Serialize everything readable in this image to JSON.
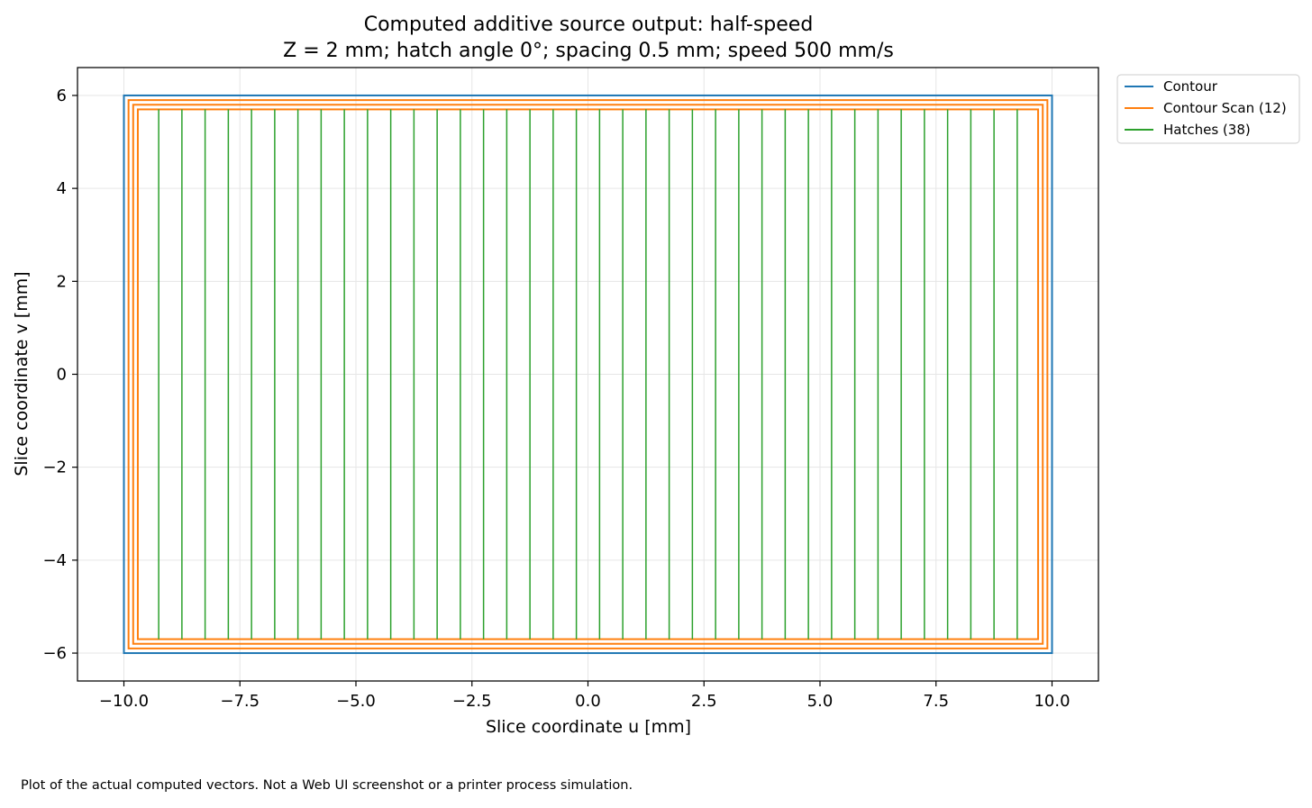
{
  "footnote": "Plot of the actual computed vectors. Not a Web UI screenshot or a printer process simulation.",
  "chart_data": {
    "type": "line",
    "title": "Computed additive source output: half-speed",
    "subtitle": "Z = 2 mm; hatch angle 0°; spacing 0.5 mm; speed 500 mm/s",
    "xlabel": "Slice coordinate u [mm]",
    "ylabel": "Slice coordinate v [mm]",
    "xlim": [
      -11,
      11
    ],
    "ylim": [
      -6.6,
      6.6
    ],
    "xticks": [
      -10.0,
      -7.5,
      -5.0,
      -2.5,
      0.0,
      2.5,
      5.0,
      7.5,
      10.0
    ],
    "xtick_labels": [
      "−10.0",
      "−7.5",
      "−5.0",
      "−2.5",
      "0.0",
      "2.5",
      "5.0",
      "7.5",
      "10.0"
    ],
    "yticks": [
      -6,
      -4,
      -2,
      0,
      2,
      4,
      6
    ],
    "ytick_labels": [
      "−6",
      "−4",
      "−2",
      "0",
      "2",
      "4",
      "6"
    ],
    "grid": true,
    "legend_position": "outside top-right",
    "series": [
      {
        "name": "Contour",
        "color": "#1f77b4",
        "rectangles": [
          {
            "u": [
              -10.0,
              10.0
            ],
            "v": [
              -6.0,
              6.0
            ]
          }
        ]
      },
      {
        "name": "Contour Scan (12)",
        "color": "#ff7f0e",
        "rectangles": [
          {
            "u": [
              -9.9,
              9.9
            ],
            "v": [
              -5.9,
              5.9
            ]
          },
          {
            "u": [
              -9.8,
              9.8
            ],
            "v": [
              -5.8,
              5.8
            ]
          },
          {
            "u": [
              -9.7,
              9.7
            ],
            "v": [
              -5.7,
              5.7
            ]
          }
        ]
      },
      {
        "name": "Hatches (38)",
        "color": "#2ca02c",
        "segments": {
          "u": [
            -9.25,
            -8.75,
            -8.25,
            -7.75,
            -7.25,
            -6.75,
            -6.25,
            -5.75,
            -5.25,
            -4.75,
            -4.25,
            -3.75,
            -3.25,
            -2.75,
            -2.25,
            -1.75,
            -1.25,
            -0.75,
            -0.25,
            0.25,
            0.75,
            1.25,
            1.75,
            2.25,
            2.75,
            3.25,
            3.75,
            4.25,
            4.75,
            5.25,
            5.75,
            6.25,
            6.75,
            7.25,
            7.75,
            8.25,
            8.75,
            9.25
          ],
          "v": [
            -5.7,
            5.7
          ]
        }
      }
    ]
  }
}
